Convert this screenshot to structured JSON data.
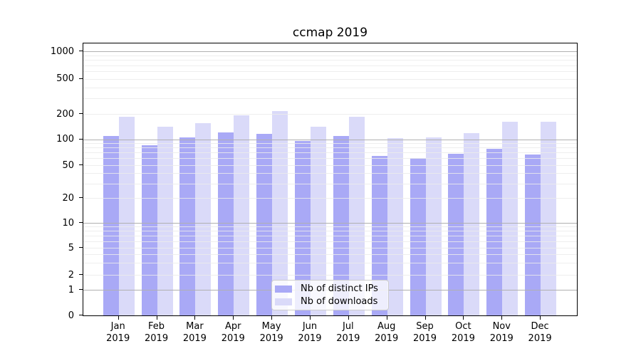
{
  "title": "ccmap 2019",
  "colors": {
    "distinct_ips_bar": "#a9a9f6",
    "downloads_bar": "#dadaf9",
    "grid_major": "#b0b0b0",
    "grid_minor": "#ebebeb"
  },
  "legend": {
    "items": [
      {
        "label": "Nb of distinct IPs",
        "color": "#a9a9f6"
      },
      {
        "label": "Nb of downloads",
        "color": "#dadaf9"
      }
    ]
  },
  "axes": {
    "y_tick_labels": [
      "0",
      "1",
      "2",
      "5",
      "10",
      "20",
      "50",
      "100",
      "200",
      "500",
      "1000"
    ],
    "x_tick_months": [
      "Jan",
      "Feb",
      "Mar",
      "Apr",
      "May",
      "Jun",
      "Jul",
      "Aug",
      "Sep",
      "Oct",
      "Nov",
      "Dec"
    ],
    "x_tick_year": "2019"
  },
  "chart_data": {
    "type": "bar",
    "title": "ccmap 2019",
    "categories": [
      "Jan 2019",
      "Feb 2019",
      "Mar 2019",
      "Apr 2019",
      "May 2019",
      "Jun 2019",
      "Jul 2019",
      "Aug 2019",
      "Sep 2019",
      "Oct 2019",
      "Nov 2019",
      "Dec 2019"
    ],
    "series": [
      {
        "name": "Nb of distinct IPs",
        "color": "#a9a9f6",
        "values": [
          108,
          83,
          104,
          118,
          114,
          93,
          108,
          63,
          59,
          66,
          76,
          65
        ]
      },
      {
        "name": "Nb of downloads",
        "color": "#dadaf9",
        "values": [
          180,
          138,
          153,
          190,
          212,
          137,
          180,
          101,
          103,
          116,
          159,
          159
        ]
      }
    ],
    "xlabel": "",
    "ylabel": "",
    "yscale": "symlog",
    "yticks": [
      0,
      1,
      2,
      5,
      10,
      20,
      50,
      100,
      200,
      500,
      1000
    ],
    "ylim": [
      0,
      1300
    ],
    "grid": "both",
    "legend_position": "lower center"
  }
}
